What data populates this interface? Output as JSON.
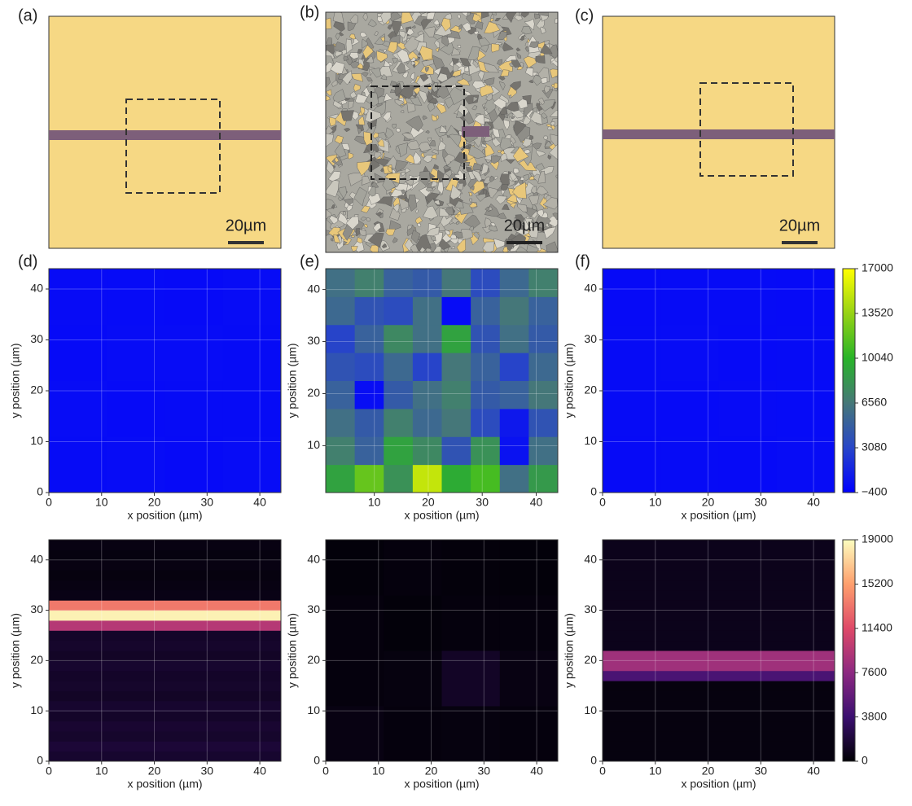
{
  "panel_labels": [
    "(a)",
    "(b)",
    "(c)",
    "(d)",
    "(e)",
    "(f)"
  ],
  "images": [
    {
      "scale_bar": "20µm"
    },
    {
      "scale_bar": "20µm"
    },
    {
      "scale_bar": "20µm"
    }
  ],
  "chart_data": [
    {
      "type": "heatmap",
      "colormap": "blue-green-yellow",
      "grid": true,
      "xlabel": "x position (µm)",
      "ylabel": "y position (µm)",
      "xlim": [
        0,
        44
      ],
      "ylim": [
        0,
        44
      ],
      "xticks": [
        0,
        10,
        20,
        30,
        40
      ],
      "yticks": [
        0,
        10,
        20,
        30,
        40
      ],
      "zlim": [
        -400,
        17000
      ],
      "z": [
        [
          150,
          200,
          120,
          180
        ],
        [
          200,
          100,
          160,
          140
        ],
        [
          120,
          180,
          200,
          150
        ],
        [
          170,
          130,
          110,
          190
        ]
      ]
    },
    {
      "type": "heatmap",
      "colormap": "blue-green-yellow",
      "grid": true,
      "xlabel": "x position (µm)",
      "ylabel": "y position (µm)",
      "xlim": [
        1,
        44
      ],
      "ylim": [
        1,
        44
      ],
      "xticks": [
        10,
        20,
        30,
        40
      ],
      "yticks": [
        10,
        20,
        30,
        40
      ],
      "zlim": [
        -400,
        17000
      ],
      "z": [
        [
          9000,
          12000,
          8000,
          15000,
          9500,
          11000,
          6000,
          8500
        ],
        [
          7000,
          5000,
          9000,
          7500,
          4000,
          8000,
          500,
          6000
        ],
        [
          6000,
          4500,
          7000,
          5500,
          6500,
          3500,
          800,
          4000
        ],
        [
          5000,
          300,
          4500,
          6000,
          7000,
          4500,
          5000,
          6500
        ],
        [
          4000,
          3500,
          5500,
          3000,
          6500,
          5000,
          3000,
          5500
        ],
        [
          3000,
          5000,
          7500,
          6000,
          9000,
          4000,
          6000,
          4500
        ],
        [
          5500,
          4000,
          3500,
          6000,
          200,
          5000,
          6500,
          5000
        ],
        [
          6000,
          7000,
          5000,
          4500,
          6500,
          3500,
          5500,
          7000
        ]
      ]
    },
    {
      "type": "heatmap",
      "colormap": "blue-green-yellow",
      "grid": true,
      "xlabel": "x position (µm)",
      "ylabel": "y position (µm)",
      "xlim": [
        0,
        44
      ],
      "ylim": [
        0,
        44
      ],
      "xticks": [
        0,
        10,
        20,
        30,
        40
      ],
      "yticks": [
        0,
        10,
        20,
        30,
        40
      ],
      "zlim": [
        -400,
        17000
      ],
      "zticks": [
        {
          "value": -400,
          "label": "−400"
        },
        3080,
        6560,
        10040,
        13520,
        17000
      ],
      "colorbar": true,
      "z": [
        [
          100,
          150,
          120,
          180
        ],
        [
          160,
          110,
          170,
          130
        ],
        [
          140,
          190,
          100,
          150
        ],
        [
          120,
          160,
          140,
          110
        ]
      ]
    },
    {
      "type": "heatmap",
      "colormap": "magma",
      "grid": true,
      "xlabel": "x position (µm)",
      "ylabel": "y position (µm)",
      "xlim": [
        0,
        44
      ],
      "ylim": [
        0,
        44
      ],
      "xticks": [
        0,
        10,
        20,
        30,
        40
      ],
      "yticks": [
        0,
        10,
        20,
        30,
        40
      ],
      "zlim": [
        0,
        19000
      ],
      "z": [
        [
          1500
        ],
        [
          1800
        ],
        [
          1400
        ],
        [
          1600
        ],
        [
          1300
        ],
        [
          1500
        ],
        [
          1200
        ],
        [
          1400
        ],
        [
          1300
        ],
        [
          1500
        ],
        [
          1200
        ],
        [
          1400
        ],
        [
          1300
        ],
        [
          9500
        ],
        [
          18500
        ],
        [
          13500
        ],
        [
          600
        ],
        [
          500
        ],
        [
          400
        ],
        [
          500
        ],
        [
          400
        ],
        [
          500
        ]
      ]
    },
    {
      "type": "heatmap",
      "colormap": "magma",
      "grid": true,
      "xlabel": "x position (µm)",
      "ylabel": "y position (µm)",
      "xlim": [
        0,
        44
      ],
      "ylim": [
        0,
        44
      ],
      "xticks": [
        0,
        10,
        20,
        30,
        40
      ],
      "yticks": [
        0,
        10,
        20,
        30,
        40
      ],
      "zlim": [
        0,
        19000
      ],
      "z": [
        [
          500,
          300,
          400,
          300
        ],
        [
          300,
          400,
          1200,
          500
        ],
        [
          300,
          200,
          300,
          300
        ],
        [
          200,
          300,
          250,
          200
        ]
      ]
    },
    {
      "type": "heatmap",
      "colormap": "magma",
      "grid": true,
      "xlabel": "x position (µm)",
      "ylabel": "y position (µm)",
      "xlim": [
        0,
        44
      ],
      "ylim": [
        0,
        44
      ],
      "xticks": [
        0,
        10,
        20,
        30,
        40
      ],
      "yticks": [
        0,
        10,
        20,
        30,
        40
      ],
      "zlim": [
        0,
        19000
      ],
      "zticks": [
        0,
        3800,
        7600,
        11400,
        15200,
        19000
      ],
      "colorbar": true,
      "z": [
        [
          400
        ],
        [
          400
        ],
        [
          400
        ],
        [
          400
        ],
        [
          400
        ],
        [
          400
        ],
        [
          400
        ],
        [
          400
        ],
        [
          4500
        ],
        [
          8500
        ],
        [
          8500
        ],
        [
          800
        ],
        [
          800
        ],
        [
          800
        ],
        [
          800
        ],
        [
          800
        ],
        [
          800
        ],
        [
          800
        ],
        [
          800
        ],
        [
          800
        ],
        [
          800
        ],
        [
          800
        ]
      ]
    }
  ]
}
